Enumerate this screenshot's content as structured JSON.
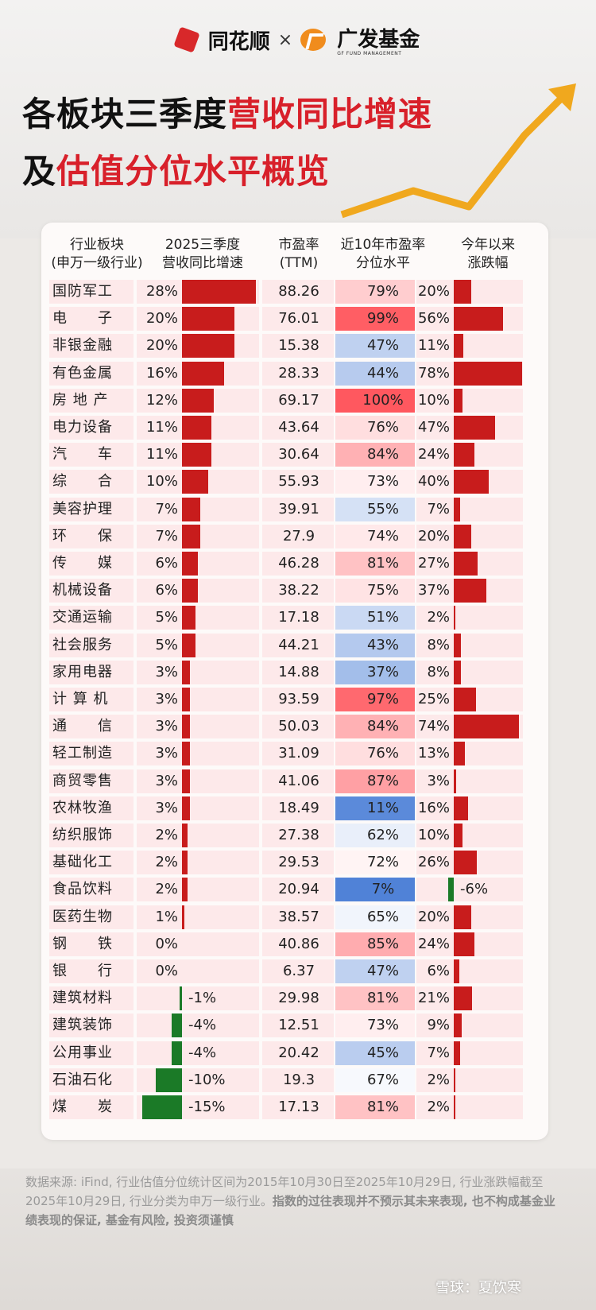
{
  "brand_left": "同花顺",
  "brand_x": "×",
  "brand_right": "广发基金",
  "brand_right_sub": "GF FUND MANAGEMENT",
  "title_line1_black": "各板块三季度",
  "title_line1_red": "营收同比增速",
  "title_line2_black": "及",
  "title_line2_red": "估值分位水平概览",
  "headers": {
    "industry_1": "行业板块",
    "industry_2": "(申万一级行业)",
    "growth_1": "2025三季度",
    "growth_2": "营收同比增速",
    "pe_1": "市盈率",
    "pe_2": "(TTM)",
    "pctile_1": "近10年市盈率",
    "pctile_2": "分位水平",
    "ytd_1": "今年以来",
    "ytd_2": "涨跌幅"
  },
  "colors": {
    "red_bar": "#c81c1c",
    "green_bar": "#1b7a27",
    "row_pink": "#fde9ea",
    "title_red": "#d8202a"
  },
  "chart_data": {
    "type": "table",
    "columns": [
      "行业板块",
      "2025三季度营收同比增速",
      "市盈率(TTM)",
      "近10年市盈率分位水平",
      "今年以来涨跌幅"
    ],
    "rows": [
      {
        "industry": "国防军工",
        "growth": 28,
        "growth_label": "28%",
        "pe": "88.26",
        "pctile": 79,
        "pctile_label": "79%",
        "ytd": 20,
        "ytd_label": "20%"
      },
      {
        "industry": "电　　子",
        "growth": 20,
        "growth_label": "20%",
        "pe": "76.01",
        "pctile": 99,
        "pctile_label": "99%",
        "ytd": 56,
        "ytd_label": "56%"
      },
      {
        "industry": "非银金融",
        "growth": 20,
        "growth_label": "20%",
        "pe": "15.38",
        "pctile": 47,
        "pctile_label": "47%",
        "ytd": 11,
        "ytd_label": "11%"
      },
      {
        "industry": "有色金属",
        "growth": 16,
        "growth_label": "16%",
        "pe": "28.33",
        "pctile": 44,
        "pctile_label": "44%",
        "ytd": 78,
        "ytd_label": "78%"
      },
      {
        "industry": "房 地 产",
        "growth": 12,
        "growth_label": "12%",
        "pe": "69.17",
        "pctile": 100,
        "pctile_label": "100%",
        "ytd": 10,
        "ytd_label": "10%"
      },
      {
        "industry": "电力设备",
        "growth": 11,
        "growth_label": "11%",
        "pe": "43.64",
        "pctile": 76,
        "pctile_label": "76%",
        "ytd": 47,
        "ytd_label": "47%"
      },
      {
        "industry": "汽　　车",
        "growth": 11,
        "growth_label": "11%",
        "pe": "30.64",
        "pctile": 84,
        "pctile_label": "84%",
        "ytd": 24,
        "ytd_label": "24%"
      },
      {
        "industry": "综　　合",
        "growth": 10,
        "growth_label": "10%",
        "pe": "55.93",
        "pctile": 73,
        "pctile_label": "73%",
        "ytd": 40,
        "ytd_label": "40%"
      },
      {
        "industry": "美容护理",
        "growth": 7,
        "growth_label": "7%",
        "pe": "39.91",
        "pctile": 55,
        "pctile_label": "55%",
        "ytd": 7,
        "ytd_label": "7%"
      },
      {
        "industry": "环　　保",
        "growth": 7,
        "growth_label": "7%",
        "pe": "27.9",
        "pctile": 74,
        "pctile_label": "74%",
        "ytd": 20,
        "ytd_label": "20%"
      },
      {
        "industry": "传　　媒",
        "growth": 6,
        "growth_label": "6%",
        "pe": "46.28",
        "pctile": 81,
        "pctile_label": "81%",
        "ytd": 27,
        "ytd_label": "27%"
      },
      {
        "industry": "机械设备",
        "growth": 6,
        "growth_label": "6%",
        "pe": "38.22",
        "pctile": 75,
        "pctile_label": "75%",
        "ytd": 37,
        "ytd_label": "37%"
      },
      {
        "industry": "交通运输",
        "growth": 5,
        "growth_label": "5%",
        "pe": "17.18",
        "pctile": 51,
        "pctile_label": "51%",
        "ytd": 2,
        "ytd_label": "2%"
      },
      {
        "industry": "社会服务",
        "growth": 5,
        "growth_label": "5%",
        "pe": "44.21",
        "pctile": 43,
        "pctile_label": "43%",
        "ytd": 8,
        "ytd_label": "8%"
      },
      {
        "industry": "家用电器",
        "growth": 3,
        "growth_label": "3%",
        "pe": "14.88",
        "pctile": 37,
        "pctile_label": "37%",
        "ytd": 8,
        "ytd_label": "8%"
      },
      {
        "industry": "计 算 机",
        "growth": 3,
        "growth_label": "3%",
        "pe": "93.59",
        "pctile": 97,
        "pctile_label": "97%",
        "ytd": 25,
        "ytd_label": "25%"
      },
      {
        "industry": "通　　信",
        "growth": 3,
        "growth_label": "3%",
        "pe": "50.03",
        "pctile": 84,
        "pctile_label": "84%",
        "ytd": 74,
        "ytd_label": "74%"
      },
      {
        "industry": "轻工制造",
        "growth": 3,
        "growth_label": "3%",
        "pe": "31.09",
        "pctile": 76,
        "pctile_label": "76%",
        "ytd": 13,
        "ytd_label": "13%"
      },
      {
        "industry": "商贸零售",
        "growth": 3,
        "growth_label": "3%",
        "pe": "41.06",
        "pctile": 87,
        "pctile_label": "87%",
        "ytd": 3,
        "ytd_label": "3%"
      },
      {
        "industry": "农林牧渔",
        "growth": 3,
        "growth_label": "3%",
        "pe": "18.49",
        "pctile": 11,
        "pctile_label": "11%",
        "ytd": 16,
        "ytd_label": "16%"
      },
      {
        "industry": "纺织服饰",
        "growth": 2,
        "growth_label": "2%",
        "pe": "27.38",
        "pctile": 62,
        "pctile_label": "62%",
        "ytd": 10,
        "ytd_label": "10%"
      },
      {
        "industry": "基础化工",
        "growth": 2,
        "growth_label": "2%",
        "pe": "29.53",
        "pctile": 72,
        "pctile_label": "72%",
        "ytd": 26,
        "ytd_label": "26%"
      },
      {
        "industry": "食品饮料",
        "growth": 2,
        "growth_label": "2%",
        "pe": "20.94",
        "pctile": 7,
        "pctile_label": "7%",
        "ytd": -6,
        "ytd_label": "-6%"
      },
      {
        "industry": "医药生物",
        "growth": 1,
        "growth_label": "1%",
        "pe": "38.57",
        "pctile": 65,
        "pctile_label": "65%",
        "ytd": 20,
        "ytd_label": "20%"
      },
      {
        "industry": "钢　　铁",
        "growth": 0,
        "growth_label": "0%",
        "pe": "40.86",
        "pctile": 85,
        "pctile_label": "85%",
        "ytd": 24,
        "ytd_label": "24%"
      },
      {
        "industry": "银　　行",
        "growth": 0,
        "growth_label": "0%",
        "pe": "6.37",
        "pctile": 47,
        "pctile_label": "47%",
        "ytd": 6,
        "ytd_label": "6%"
      },
      {
        "industry": "建筑材料",
        "growth": -1,
        "growth_label": "-1%",
        "pe": "29.98",
        "pctile": 81,
        "pctile_label": "81%",
        "ytd": 21,
        "ytd_label": "21%"
      },
      {
        "industry": "建筑装饰",
        "growth": -4,
        "growth_label": "-4%",
        "pe": "12.51",
        "pctile": 73,
        "pctile_label": "73%",
        "ytd": 9,
        "ytd_label": "9%"
      },
      {
        "industry": "公用事业",
        "growth": -4,
        "growth_label": "-4%",
        "pe": "20.42",
        "pctile": 45,
        "pctile_label": "45%",
        "ytd": 7,
        "ytd_label": "7%"
      },
      {
        "industry": "石油石化",
        "growth": -10,
        "growth_label": "-10%",
        "pe": "19.3",
        "pctile": 67,
        "pctile_label": "67%",
        "ytd": 2,
        "ytd_label": "2%"
      },
      {
        "industry": "煤　　炭",
        "growth": -15,
        "growth_label": "-15%",
        "pe": "17.13",
        "pctile": 81,
        "pctile_label": "81%",
        "ytd": 2,
        "ytd_label": "2%"
      }
    ]
  },
  "footer_text": "数据来源: iFind, 行业估值分位统计区间为2015年10月30日至2025年10月29日, 行业涨跌幅截至2025年10月29日, 行业分类为申万一级行业。",
  "footer_bold": "指数的过往表现并不预示其未来表现, 也不构成基金业绩表现的保证, 基金有风险, 投资须谨慎",
  "watermark": "雪球：夏饮寒"
}
